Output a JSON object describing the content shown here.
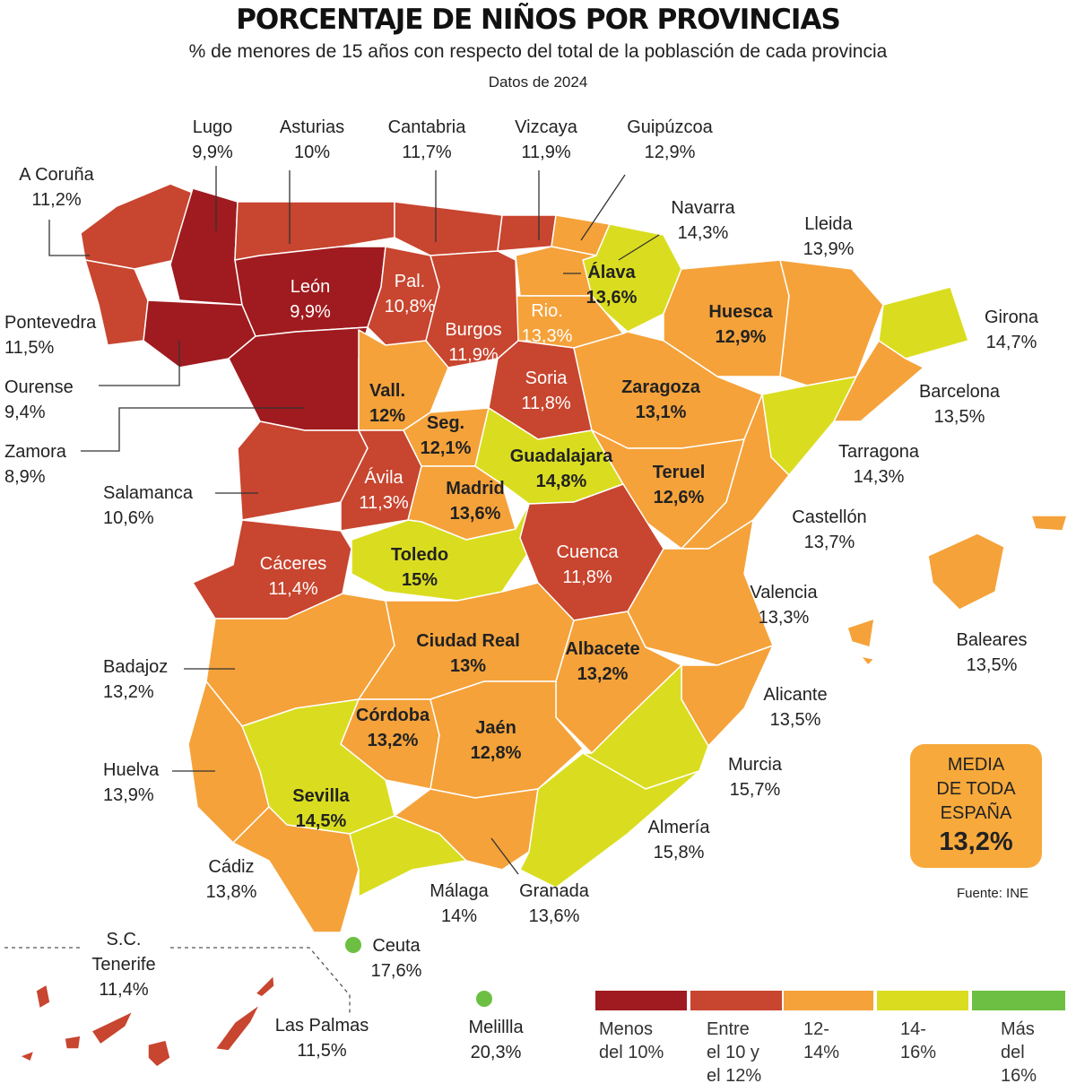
{
  "header": {
    "title": "PORCENTAJE DE NIÑOS POR PROVINCIAS",
    "subtitle": "% de menores de 15 años con respecto del total de la poblasción de cada provincia",
    "date": "Datos de 2024"
  },
  "legend": [
    {
      "label": "Menos\ndel 10%",
      "color": "#9f1b1f"
    },
    {
      "label": "Entre\nel 10 y\nel 12%",
      "color": "#c8452f"
    },
    {
      "label": "12-\n14%",
      "color": "#f5a23a"
    },
    {
      "label": "14-\n16%",
      "color": "#dadd1f"
    },
    {
      "label": "Más\ndel\n16%",
      "color": "#6cbf42"
    }
  ],
  "average": {
    "label": "MEDIA\nDE TODA\nESPAÑA",
    "value": "13,2%"
  },
  "source": "Fuente: INE",
  "provinces": [
    {
      "name": "A Coruña",
      "value": 11.2,
      "label": "11,2%"
    },
    {
      "name": "Lugo",
      "value": 9.9,
      "label": "9,9%"
    },
    {
      "name": "Pontevedra",
      "value": 11.5,
      "label": "11,5%"
    },
    {
      "name": "Ourense",
      "value": 9.4,
      "label": "9,4%"
    },
    {
      "name": "Asturias",
      "value": 10,
      "label": "10%"
    },
    {
      "name": "Cantabria",
      "value": 11.7,
      "label": "11,7%"
    },
    {
      "name": "Vizcaya",
      "value": 11.9,
      "label": "11,9%"
    },
    {
      "name": "Guipúzcoa",
      "value": 12.9,
      "label": "12,9%"
    },
    {
      "name": "Navarra",
      "value": 14.3,
      "label": "14,3%"
    },
    {
      "name": "Álava",
      "value": 13.6,
      "label": "13,6%"
    },
    {
      "name": "Rio.",
      "value": 13.3,
      "label": "13,3%"
    },
    {
      "name": "León",
      "value": 9.9,
      "label": "9,9%"
    },
    {
      "name": "Pal.",
      "value": 10.8,
      "label": "10,8%"
    },
    {
      "name": "Burgos",
      "value": 11.9,
      "label": "11,9%"
    },
    {
      "name": "Zamora",
      "value": 8.9,
      "label": "8,9%"
    },
    {
      "name": "Vall.",
      "value": 12,
      "label": "12%"
    },
    {
      "name": "Soria",
      "value": 11.8,
      "label": "11,8%"
    },
    {
      "name": "Seg.",
      "value": 12.1,
      "label": "12,1%"
    },
    {
      "name": "Salamanca",
      "value": 10.6,
      "label": "10,6%"
    },
    {
      "name": "Ávila",
      "value": 11.3,
      "label": "11,3%"
    },
    {
      "name": "Madrid",
      "value": 13.6,
      "label": "13,6%"
    },
    {
      "name": "Guadalajara",
      "value": 14.8,
      "label": "14,8%"
    },
    {
      "name": "Huesca",
      "value": 12.9,
      "label": "12,9%"
    },
    {
      "name": "Zaragoza",
      "value": 13.1,
      "label": "13,1%"
    },
    {
      "name": "Teruel",
      "value": 12.6,
      "label": "12,6%"
    },
    {
      "name": "Lleida",
      "value": 13.9,
      "label": "13,9%"
    },
    {
      "name": "Girona",
      "value": 14.7,
      "label": "14,7%"
    },
    {
      "name": "Barcelona",
      "value": 13.5,
      "label": "13,5%"
    },
    {
      "name": "Tarragona",
      "value": 14.3,
      "label": "14,3%"
    },
    {
      "name": "Castellón",
      "value": 13.7,
      "label": "13,7%"
    },
    {
      "name": "Valencia",
      "value": 13.3,
      "label": "13,3%"
    },
    {
      "name": "Alicante",
      "value": 13.5,
      "label": "13,5%"
    },
    {
      "name": "Cáceres",
      "value": 11.4,
      "label": "11,4%"
    },
    {
      "name": "Badajoz",
      "value": 13.2,
      "label": "13,2%"
    },
    {
      "name": "Toledo",
      "value": 15,
      "label": "15%"
    },
    {
      "name": "Cuenca",
      "value": 11.8,
      "label": "11,8%"
    },
    {
      "name": "Ciudad Real",
      "value": 13,
      "label": "13%"
    },
    {
      "name": "Albacete",
      "value": 13.2,
      "label": "13,2%"
    },
    {
      "name": "Murcia",
      "value": 15.7,
      "label": "15,7%"
    },
    {
      "name": "Córdoba",
      "value": 13.2,
      "label": "13,2%"
    },
    {
      "name": "Jaén",
      "value": 12.8,
      "label": "12,8%"
    },
    {
      "name": "Huelva",
      "value": 13.9,
      "label": "13,9%"
    },
    {
      "name": "Sevilla",
      "value": 14.5,
      "label": "14,5%"
    },
    {
      "name": "Cádiz",
      "value": 13.8,
      "label": "13,8%"
    },
    {
      "name": "Málaga",
      "value": 14,
      "label": "14%"
    },
    {
      "name": "Granada",
      "value": 13.6,
      "label": "13,6%"
    },
    {
      "name": "Almería",
      "value": 15.8,
      "label": "15,8%"
    },
    {
      "name": "Baleares",
      "value": 13.5,
      "label": "13,5%"
    },
    {
      "name": "S.C. Tenerife",
      "value": 11.4,
      "label": "11,4%"
    },
    {
      "name": "Las Palmas",
      "value": 11.5,
      "label": "11,5%"
    },
    {
      "name": "Ceuta",
      "value": 17.6,
      "label": "17,6%"
    },
    {
      "name": "Melillla",
      "value": 20.3,
      "label": "20,3%"
    }
  ]
}
